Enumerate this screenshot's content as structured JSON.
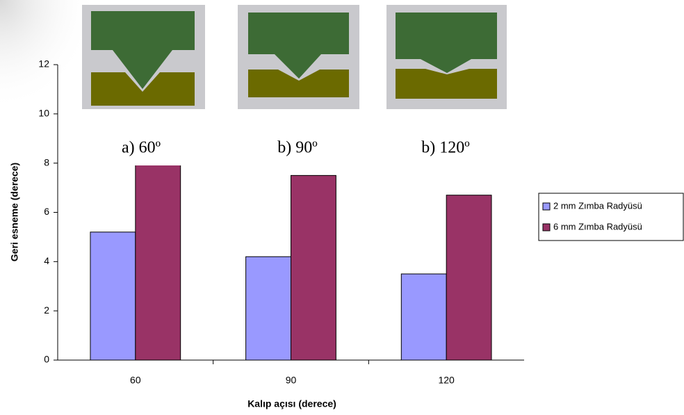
{
  "chart_data": {
    "type": "bar",
    "x_label": "Kalıp açısı (derece)",
    "y_label": "Geri esneme (derece)",
    "categories": [
      "60",
      "90",
      "120"
    ],
    "series": [
      {
        "name": "2 mm Zımba Radyüsü",
        "color": "#9999ff",
        "values": [
          5.2,
          4.2,
          3.5
        ]
      },
      {
        "name": "6 mm Zımba Radyüsü",
        "color": "#993366",
        "values": [
          8.0,
          7.5,
          6.7
        ]
      }
    ],
    "ylim": [
      0,
      12
    ],
    "yticks": [
      0,
      2,
      4,
      6,
      8,
      10,
      12
    ],
    "legend": "right",
    "annotations": [
      "a) 60º",
      "b) 90º",
      "b) 120º"
    ]
  }
}
